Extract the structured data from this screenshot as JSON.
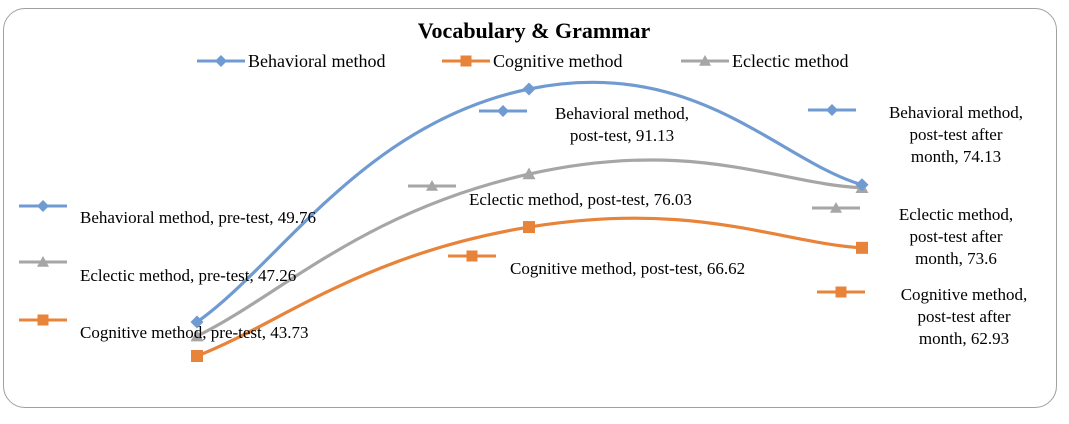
{
  "chart_data": {
    "type": "line",
    "title": "Vocabulary & Grammar",
    "categories": [
      "pre-test",
      "post-test",
      "post-test after month"
    ],
    "series": [
      {
        "name": "Behavioral method",
        "values": [
          49.76,
          91.13,
          74.13
        ],
        "color": "#6f9bd2",
        "marker": "diamond"
      },
      {
        "name": "Cognitive method",
        "values": [
          43.73,
          66.62,
          62.93
        ],
        "color": "#e8833a",
        "marker": "square"
      },
      {
        "name": "Eclectic method",
        "values": [
          47.26,
          76.03,
          73.6
        ],
        "color": "#a6a6a6",
        "marker": "triangle"
      }
    ],
    "legend": {
      "position": "top",
      "items": [
        "Behavioral method",
        "Cognitive method",
        "Eclectic method"
      ]
    },
    "data_labels": [
      {
        "series": 0,
        "point": 0,
        "lines": [
          "Behavioral method, pre-test, 49.76"
        ]
      },
      {
        "series": 0,
        "point": 1,
        "lines": [
          "Behavioral method,",
          "post-test, 91.13"
        ]
      },
      {
        "series": 0,
        "point": 2,
        "lines": [
          "Behavioral method,",
          "post-test after",
          "month, 74.13"
        ]
      },
      {
        "series": 1,
        "point": 0,
        "lines": [
          "Cognitive method, pre-test, 43.73"
        ]
      },
      {
        "series": 1,
        "point": 1,
        "lines": [
          "Cognitive method, post-test, 66.62"
        ]
      },
      {
        "series": 1,
        "point": 2,
        "lines": [
          "Cognitive method,",
          "post-test after",
          "month, 62.93"
        ]
      },
      {
        "series": 2,
        "point": 0,
        "lines": [
          "Eclectic method, pre-test, 47.26"
        ]
      },
      {
        "series": 2,
        "point": 1,
        "lines": [
          "Eclectic method, post-test, 76.03"
        ]
      },
      {
        "series": 2,
        "point": 2,
        "lines": [
          "Eclectic method,",
          "post-test after",
          "month, 73.6"
        ]
      }
    ],
    "smooth": true,
    "axes_visible": false,
    "grid": false
  }
}
